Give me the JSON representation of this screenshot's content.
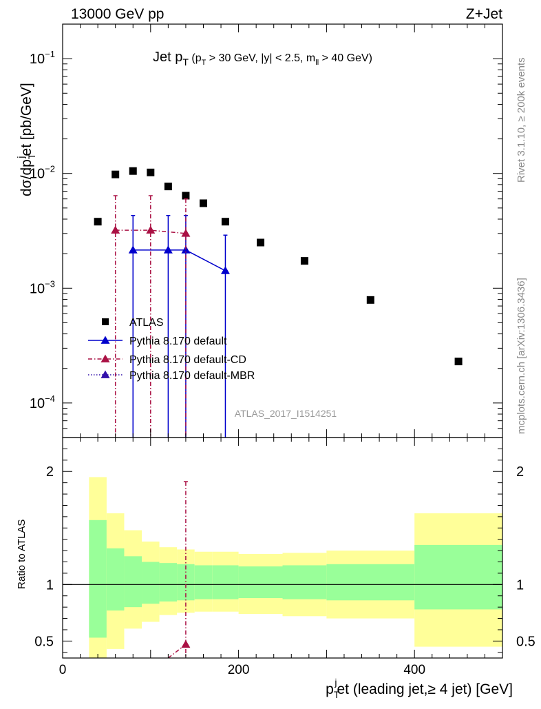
{
  "header": {
    "energy_label": "13000 GeV pp",
    "process_label": "Z+Jet"
  },
  "side_labels": {
    "rivet": "Rivet 3.1.10, ≥ 200k events",
    "mcplots": "mcplots.cern.ch [arXiv:1306.3436]"
  },
  "chart_data": [
    {
      "type": "scatter",
      "panel": "main",
      "title_parts": {
        "main": "Jet p",
        "main_sub": "T",
        "cut_open": " (p",
        "cut_sub": "T",
        "cut_rest": " > 30 GeV, |y| < 2.5, m",
        "cut_sub2": "ll",
        "cut_end": " > 40 GeV)"
      },
      "ylabel_parts": {
        "a": "dσ/dp",
        "sub": "T",
        "sup": "j",
        "b": "et [pb/GeV]"
      },
      "watermark": "ATLAS_2017_I1514251",
      "y_scale": "log",
      "ylim": [
        5e-05,
        0.2
      ],
      "xlim": [
        0,
        500
      ],
      "y_tick_labels": [
        "10",
        "10",
        "10",
        "10"
      ],
      "y_tick_exponents": [
        "−1",
        "−2",
        "−3",
        "−4"
      ],
      "y_tick_values": [
        0.1,
        0.01,
        0.001,
        0.0001
      ],
      "legend": {
        "placement": "lower-left",
        "entries": [
          "ATLAS",
          "Pythia 8.170 default",
          "Pythia 8.170 default-CD",
          "Pythia 8.170 default-MBR"
        ]
      },
      "series": [
        {
          "name": "ATLAS",
          "style": "marker-square",
          "color": "#000000",
          "x": [
            40,
            60,
            80,
            100,
            120,
            140,
            160,
            185,
            225,
            275,
            350,
            450
          ],
          "y": [
            0.0038,
            0.0098,
            0.0105,
            0.0102,
            0.0077,
            0.0064,
            0.0055,
            0.0038,
            0.0025,
            0.00173,
            0.00079,
            0.00023
          ]
        },
        {
          "name": "Pythia 8.170 default",
          "style": "solid",
          "color": "#0000cc",
          "x": [
            80,
            120,
            140,
            185
          ],
          "y": [
            0.00215,
            0.00215,
            0.00215,
            0.00142
          ],
          "err_up": [
            0.0043,
            0.0043,
            0.0043,
            0.0029
          ],
          "err_down": [
            5e-05,
            5e-05,
            5e-05,
            5e-05
          ]
        },
        {
          "name": "Pythia 8.170 default-CD",
          "style": "dash-dot",
          "color": "#aa1144",
          "x": [
            60,
            100,
            140
          ],
          "y": [
            0.0032,
            0.0032,
            0.003
          ],
          "err_up": [
            0.0064,
            0.0064,
            0.006
          ],
          "err_down": [
            5e-05,
            5e-05,
            5e-05
          ]
        },
        {
          "name": "Pythia 8.170 default-MBR",
          "style": "dotted",
          "color": "#3311aa",
          "x": [],
          "y": []
        }
      ]
    },
    {
      "type": "line",
      "panel": "ratio",
      "ylabel": "Ratio to ATLAS",
      "xlabel_parts": {
        "a": "p",
        "sub": "T",
        "sup": "j",
        "b": "et (leading jet,≥ 4 jet) [GeV]"
      },
      "xlim": [
        0,
        500
      ],
      "ylim": [
        0.35,
        2.3
      ],
      "x_tick_labels": [
        "0",
        "200",
        "400"
      ],
      "y_tick_labels": [
        "0.5",
        "1",
        "2"
      ],
      "bins": [
        {
          "lo": 30,
          "hi": 50,
          "stat": [
            0.53,
            1.57
          ],
          "total": [
            0.3,
            1.95
          ]
        },
        {
          "lo": 50,
          "hi": 70,
          "stat": [
            0.77,
            1.32
          ],
          "total": [
            0.43,
            1.63
          ]
        },
        {
          "lo": 70,
          "hi": 90,
          "stat": [
            0.8,
            1.25
          ],
          "total": [
            0.61,
            1.48
          ]
        },
        {
          "lo": 90,
          "hi": 110,
          "stat": [
            0.83,
            1.2
          ],
          "total": [
            0.67,
            1.38
          ]
        },
        {
          "lo": 110,
          "hi": 130,
          "stat": [
            0.85,
            1.19
          ],
          "total": [
            0.73,
            1.33
          ]
        },
        {
          "lo": 130,
          "hi": 150,
          "stat": [
            0.86,
            1.18
          ],
          "total": [
            0.75,
            1.31
          ]
        },
        {
          "lo": 150,
          "hi": 170,
          "stat": [
            0.87,
            1.17
          ],
          "total": [
            0.76,
            1.29
          ]
        },
        {
          "lo": 170,
          "hi": 200,
          "stat": [
            0.87,
            1.17
          ],
          "total": [
            0.76,
            1.29
          ]
        },
        {
          "lo": 200,
          "hi": 250,
          "stat": [
            0.88,
            1.16
          ],
          "total": [
            0.74,
            1.27
          ]
        },
        {
          "lo": 250,
          "hi": 300,
          "stat": [
            0.87,
            1.17
          ],
          "total": [
            0.72,
            1.28
          ]
        },
        {
          "lo": 300,
          "hi": 400,
          "stat": [
            0.86,
            1.18
          ],
          "total": [
            0.7,
            1.3
          ]
        },
        {
          "lo": 400,
          "hi": 500,
          "stat": [
            0.78,
            1.35
          ],
          "total": [
            0.45,
            1.63
          ]
        }
      ],
      "series": [
        {
          "name": "Pythia 8.170 default-CD",
          "style": "dash-dot",
          "color": "#aa1144",
          "x": [
            140
          ],
          "y": [
            0.47
          ],
          "err_up": [
            1.91
          ]
        }
      ],
      "colors": {
        "stat_band": "#99ff99",
        "total_band": "#ffff99",
        "reference_line": "#000000"
      }
    }
  ]
}
